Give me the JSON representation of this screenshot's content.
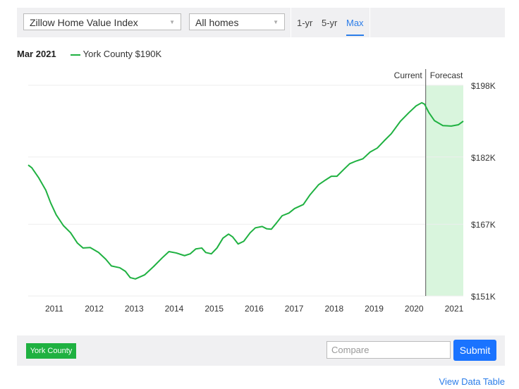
{
  "toolbar": {
    "metric_select": "Zillow Home Value Index",
    "home_type_select": "All homes",
    "tabs": [
      "1-yr",
      "5-yr",
      "Max"
    ],
    "active_tab": "Max"
  },
  "legend": {
    "date": "Mar 2021",
    "series_label": "York County $190K"
  },
  "colors": {
    "series": "#1fb141",
    "forecast_band": "#d9f5dd",
    "accent": "#2b7de9",
    "submit": "#1a73ff"
  },
  "chart_data": {
    "type": "line",
    "title": "",
    "xlabel": "",
    "ylabel": "",
    "xlim": [
      2010.35,
      2021.23
    ],
    "ylim": [
      151,
      198
    ],
    "y_ticks": [
      198,
      182,
      167,
      151
    ],
    "y_tick_labels": [
      "$198K",
      "$182K",
      "$167K",
      "$151K"
    ],
    "x_ticks": [
      2011,
      2012,
      2013,
      2014,
      2015,
      2016,
      2017,
      2018,
      2019,
      2020,
      2021
    ],
    "x_tick_labels": [
      "2011",
      "2012",
      "2013",
      "2014",
      "2015",
      "2016",
      "2017",
      "2018",
      "2019",
      "2020",
      "2021"
    ],
    "grid": "horizontal",
    "current_marker": {
      "x": 2020.29,
      "left_label": "Current",
      "right_label": "Forecast"
    },
    "series": [
      {
        "name": "York County",
        "unit": "$K",
        "x": [
          2010.35,
          2010.44,
          2010.61,
          2010.79,
          2010.91,
          2011.05,
          2011.23,
          2011.41,
          2011.58,
          2011.72,
          2011.9,
          2012.11,
          2012.29,
          2012.43,
          2012.64,
          2012.78,
          2012.9,
          2013.03,
          2013.26,
          2013.49,
          2013.7,
          2013.87,
          2014.05,
          2014.26,
          2014.4,
          2014.54,
          2014.69,
          2014.79,
          2014.93,
          2015.07,
          2015.22,
          2015.36,
          2015.46,
          2015.6,
          2015.74,
          2015.9,
          2016.03,
          2016.2,
          2016.31,
          2016.43,
          2016.56,
          2016.7,
          2016.87,
          2017.01,
          2017.23,
          2017.4,
          2017.61,
          2017.79,
          2017.93,
          2018.07,
          2018.25,
          2018.39,
          2018.55,
          2018.72,
          2018.9,
          2019.08,
          2019.25,
          2019.43,
          2019.66,
          2019.87,
          2020.05,
          2020.19,
          2020.26,
          2020.37,
          2020.51,
          2020.72,
          2020.93,
          2021.11,
          2021.23
        ],
        "y": [
          180.2,
          179.6,
          177.4,
          174.6,
          171.8,
          169.1,
          166.7,
          165.1,
          162.8,
          161.7,
          161.8,
          160.7,
          159.2,
          157.7,
          157.3,
          156.5,
          155.1,
          154.8,
          155.7,
          157.6,
          159.5,
          160.9,
          160.6,
          160.0,
          160.4,
          161.5,
          161.7,
          160.7,
          160.4,
          161.7,
          163.9,
          164.8,
          164.2,
          162.6,
          163.2,
          165.1,
          166.2,
          166.5,
          166.0,
          165.9,
          167.3,
          168.9,
          169.5,
          170.5,
          171.4,
          173.6,
          175.8,
          176.9,
          177.7,
          177.7,
          179.3,
          180.5,
          181.1,
          181.6,
          183.1,
          184.0,
          185.6,
          187.2,
          190.0,
          191.9,
          193.4,
          194.1,
          193.8,
          191.9,
          190.1,
          189.0,
          188.9,
          189.2,
          190.0
        ]
      }
    ]
  },
  "bottom": {
    "region_badge": "York County",
    "compare_placeholder": "Compare",
    "submit_label": "Submit"
  },
  "footer": {
    "view_data_table": "View Data Table"
  }
}
